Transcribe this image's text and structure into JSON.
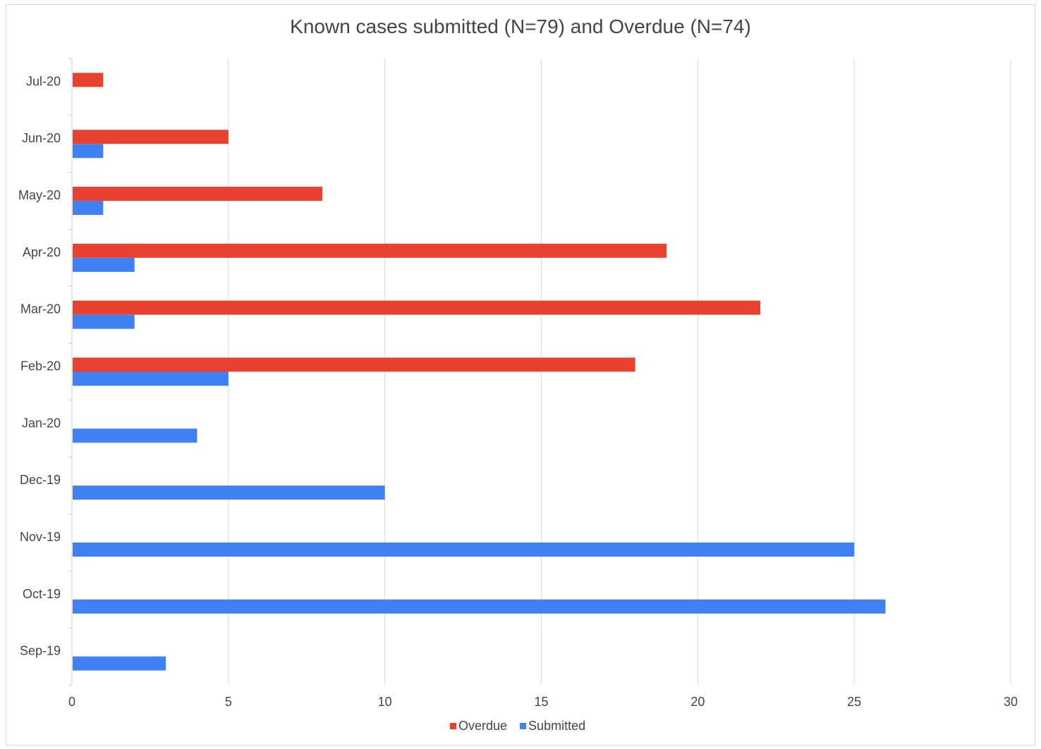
{
  "chart_data": {
    "type": "bar",
    "orientation": "horizontal",
    "title": "Known cases submitted (N=79) and Overdue (N=74)",
    "categories": [
      "Jul-20",
      "Jun-20",
      "May-20",
      "Apr-20",
      "Mar-20",
      "Feb-20",
      "Jan-20",
      "Dec-19",
      "Nov-19",
      "Oct-19",
      "Sep-19"
    ],
    "series": [
      {
        "name": "Overdue",
        "color": "#e8412f",
        "values": [
          1,
          5,
          8,
          19,
          22,
          18,
          0,
          0,
          0,
          0,
          0
        ]
      },
      {
        "name": "Submitted",
        "color": "#3f80f2",
        "values": [
          0,
          1,
          1,
          2,
          2,
          5,
          4,
          10,
          25,
          26,
          3
        ]
      }
    ],
    "xlim": [
      0,
      30
    ],
    "xticks": [
      0,
      5,
      10,
      15,
      20,
      25,
      30
    ],
    "xlabel": "",
    "ylabel": "",
    "grid": true,
    "legend_position": "bottom"
  }
}
